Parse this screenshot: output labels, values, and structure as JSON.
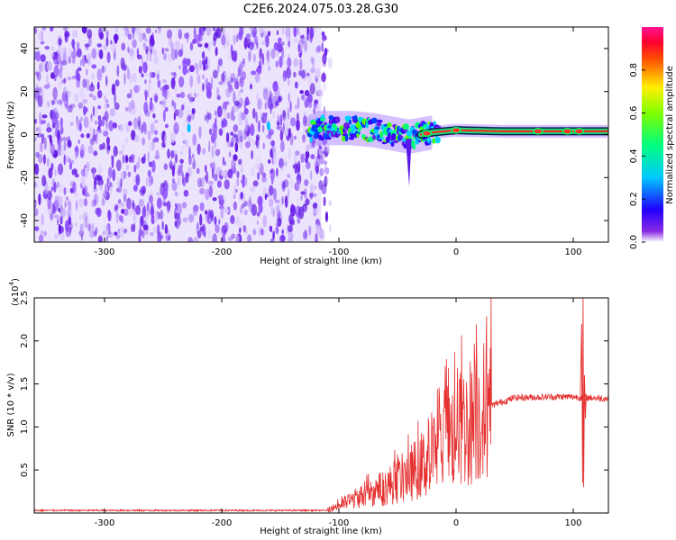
{
  "title": "C2E6.2024.075.03.28.G30",
  "chart_data": [
    {
      "type": "heatmap",
      "xlabel": "Height of straight line (km)",
      "ylabel": "Frequency (Hz)",
      "xlim": [
        -360,
        130
      ],
      "ylim": [
        -50,
        50
      ],
      "xticks": [
        -300,
        -200,
        -100,
        0,
        100
      ],
      "yticks": [
        -40,
        -20,
        0,
        20,
        40
      ],
      "colorbar": {
        "label": "Normalized spectral amplitude",
        "range": [
          0.0,
          1.0
        ],
        "ticks": [
          0.0,
          0.2,
          0.4,
          0.6,
          0.8
        ],
        "tick_labels": [
          "0.0",
          "0.2",
          "0.4",
          "0.6",
          "0.8"
        ],
        "colormap": [
          "#ffffff",
          "#7000ff",
          "#0000ff",
          "#00ffff",
          "#00ff00",
          "#ffff00",
          "#ff0000",
          "#ff1493"
        ]
      },
      "signal_track": {
        "description_free": true,
        "noise_region_x": [
          -360,
          -115
        ],
        "signal_start_x": -125,
        "center_freq_points": [
          [
            -120,
            3
          ],
          [
            -90,
            3
          ],
          [
            -70,
            2
          ],
          [
            -50,
            0
          ],
          [
            -40,
            -1
          ],
          [
            -30,
            0
          ],
          [
            -20,
            1
          ],
          [
            0,
            2
          ],
          [
            40,
            1.5
          ],
          [
            80,
            1.5
          ],
          [
            130,
            1.5
          ]
        ],
        "downward_spike": {
          "x": -40,
          "freq_min": -24
        }
      }
    },
    {
      "type": "line",
      "xlabel": "Height of straight line (km)",
      "ylabel": "SNR (10 * v/v)",
      "y_multiplier_label": "(x10",
      "y_multiplier_exp": "4",
      "y_multiplier_close": ")",
      "xlim": [
        -360,
        130
      ],
      "ylim": [
        0,
        2.5
      ],
      "xticks": [
        -300,
        -200,
        -100,
        0,
        100
      ],
      "yticks": [
        0.5,
        1.0,
        1.5,
        2.0,
        2.5
      ],
      "ytick_labels": [
        "0.5",
        "1.0",
        "1.5",
        "2.0",
        "2.5"
      ],
      "color": "#e53030",
      "envelope": [
        {
          "x": -360,
          "y": 0.03
        },
        {
          "x": -110,
          "y": 0.03
        },
        {
          "x": -95,
          "y": 0.12
        },
        {
          "x": -80,
          "y": 0.2
        },
        {
          "x": -60,
          "y": 0.3
        },
        {
          "x": -40,
          "y": 0.45
        },
        {
          "x": -25,
          "y": 0.6
        },
        {
          "x": -10,
          "y": 0.85
        },
        {
          "x": 10,
          "y": 1.05
        },
        {
          "x": 30,
          "y": 1.25
        },
        {
          "x": 50,
          "y": 1.34
        },
        {
          "x": 80,
          "y": 1.35
        },
        {
          "x": 100,
          "y": 1.35
        },
        {
          "x": 130,
          "y": 1.33
        }
      ],
      "spike": {
        "x": 108,
        "y_max": 2.5,
        "y_min": 0.3
      }
    }
  ]
}
